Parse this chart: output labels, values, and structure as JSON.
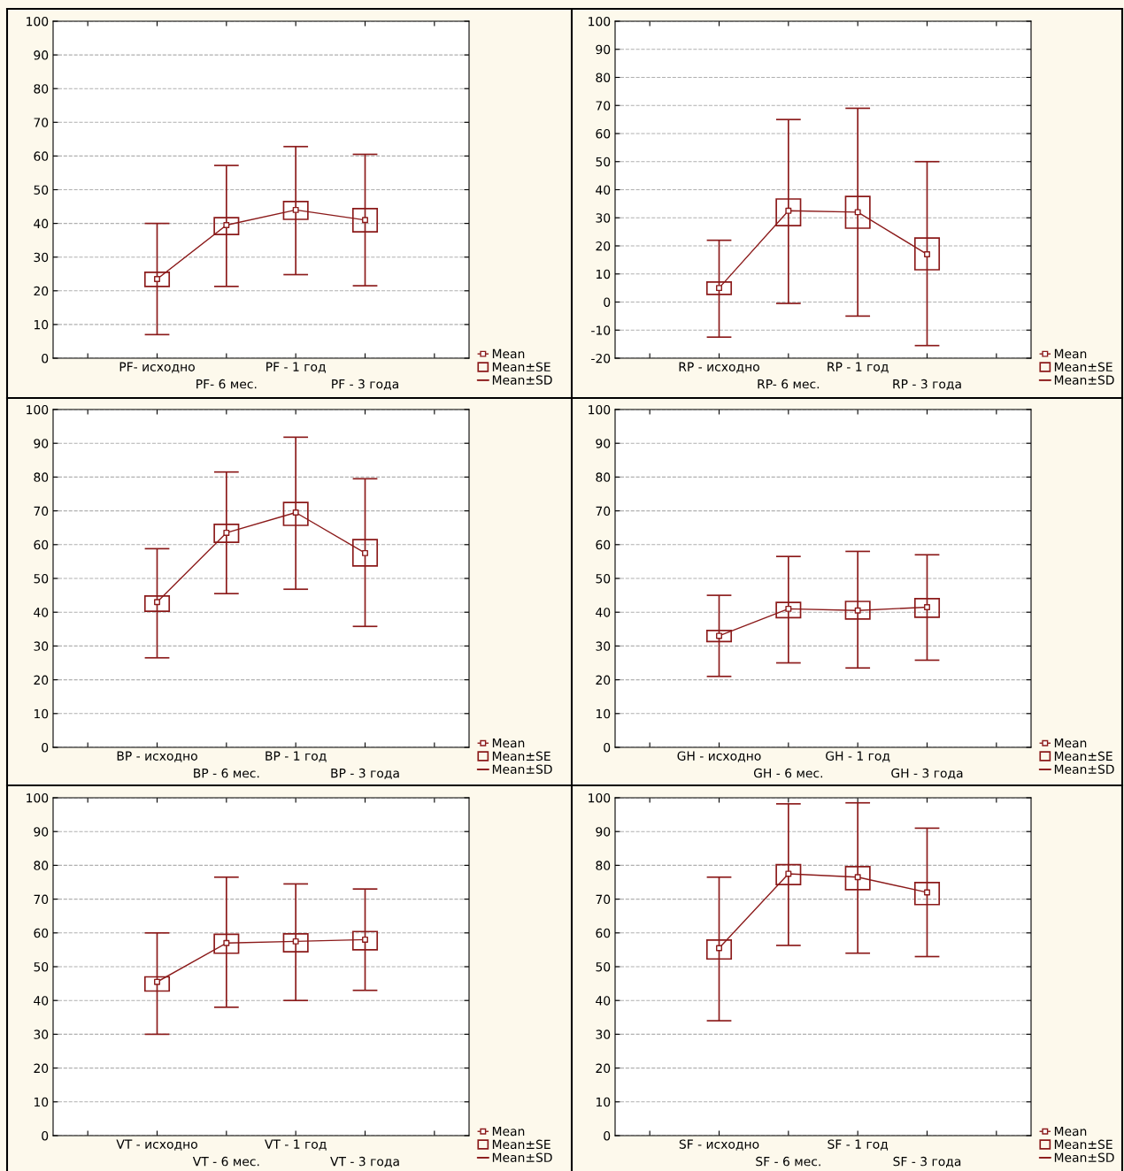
{
  "chart_data": [
    {
      "type": "line",
      "categories": [
        null,
        "PF- исходно",
        "PF- 6 мес.",
        "PF - 1 год",
        "PF - 3 года",
        null
      ],
      "ylim": [
        0,
        100
      ],
      "yticks": [
        0,
        10,
        20,
        30,
        40,
        50,
        60,
        70,
        80,
        90,
        100
      ],
      "grid": "y",
      "legend": "right",
      "series": [
        {
          "name": "Mean",
          "marker": "none",
          "color": "#8b1a1a",
          "values": [
            null,
            23.5,
            39.5,
            44,
            41,
            null
          ]
        },
        {
          "name": "Mean±SE",
          "type": "bar",
          "color": "#8b1a1a",
          "base": [
            null,
            21.3,
            36.7,
            41.2,
            37.5,
            null
          ],
          "values": [
            null,
            4.2,
            5.0,
            5.3,
            6.9,
            null
          ]
        },
        {
          "name": "Mean±SD",
          "type": "scatter",
          "marker": "square",
          "color": "#8b1a1a",
          "values": [
            null,
            23.5,
            39.5,
            44,
            41,
            null
          ],
          "errors": [
            null,
            [
              7,
              40
            ],
            [
              21.3,
              57.2
            ],
            [
              24.8,
              62.8
            ],
            [
              21.5,
              60.5
            ],
            null
          ]
        }
      ]
    },
    {
      "type": "line",
      "categories": [
        null,
        "RP - исходно",
        "RP- 6 мес.",
        "RP - 1 год",
        "RP - 3 года",
        null
      ],
      "ylim": [
        -20,
        100
      ],
      "yticks": [
        -20,
        -10,
        0,
        10,
        20,
        30,
        40,
        50,
        60,
        70,
        80,
        90,
        100
      ],
      "grid": "y",
      "legend": "right",
      "series": [
        {
          "name": "Mean",
          "marker": "none",
          "color": "#8b1a1a",
          "values": [
            null,
            5,
            32.5,
            32,
            17,
            null
          ]
        },
        {
          "name": "Mean±SE",
          "type": "bar",
          "color": "#8b1a1a",
          "base": [
            null,
            2.7,
            27.2,
            26.3,
            11.5,
            null
          ],
          "values": [
            null,
            4.4,
            9.5,
            11.3,
            11.3,
            null
          ]
        },
        {
          "name": "Mean±SD",
          "type": "scatter",
          "marker": "square",
          "color": "#8b1a1a",
          "values": [
            null,
            5,
            32.5,
            32,
            17,
            null
          ],
          "errors": [
            null,
            [
              -12.5,
              22
            ],
            [
              -0.5,
              65
            ],
            [
              -5,
              69
            ],
            [
              -15.5,
              50
            ],
            null
          ]
        }
      ]
    },
    {
      "type": "line",
      "categories": [
        null,
        "BP - исходно",
        "BP - 6 мес.",
        "BP - 1 год",
        "BP - 3 года",
        null
      ],
      "ylim": [
        0,
        100
      ],
      "yticks": [
        0,
        10,
        20,
        30,
        40,
        50,
        60,
        70,
        80,
        90,
        100
      ],
      "grid": "y",
      "legend": "right",
      "series": [
        {
          "name": "Mean",
          "marker": "none",
          "color": "#8b1a1a",
          "values": [
            null,
            43,
            63.5,
            69.5,
            57.5,
            null
          ]
        },
        {
          "name": "Mean±SE",
          "type": "bar",
          "color": "#8b1a1a",
          "base": [
            null,
            40.3,
            60.7,
            65.7,
            53.7,
            null
          ],
          "values": [
            null,
            4.5,
            5.3,
            6.8,
            7.8,
            null
          ]
        },
        {
          "name": "Mean±SD",
          "type": "scatter",
          "marker": "square",
          "color": "#8b1a1a",
          "values": [
            null,
            43,
            63.5,
            69.5,
            57.5,
            null
          ],
          "errors": [
            null,
            [
              26.5,
              58.8
            ],
            [
              45.5,
              81.5
            ],
            [
              46.8,
              91.8
            ],
            [
              35.8,
              79.5
            ],
            null
          ]
        }
      ]
    },
    {
      "type": "line",
      "categories": [
        null,
        "GH - исходно",
        "GH - 6 мес.",
        "GH - 1 год",
        "GH - 3 года",
        null
      ],
      "ylim": [
        0,
        100
      ],
      "yticks": [
        0,
        10,
        20,
        30,
        40,
        50,
        60,
        70,
        80,
        90,
        100
      ],
      "grid": "y",
      "legend": "right",
      "series": [
        {
          "name": "Mean",
          "marker": "none",
          "color": "#8b1a1a",
          "values": [
            null,
            33,
            41,
            40.5,
            41.5,
            null
          ]
        },
        {
          "name": "Mean±SE",
          "type": "bar",
          "color": "#8b1a1a",
          "base": [
            null,
            31.3,
            38.4,
            38,
            38.5,
            null
          ],
          "values": [
            null,
            3.3,
            4.5,
            5.2,
            5.5,
            null
          ]
        },
        {
          "name": "Mean±SD",
          "type": "scatter",
          "marker": "square",
          "color": "#8b1a1a",
          "values": [
            null,
            33,
            41,
            40.5,
            41.5,
            null
          ],
          "errors": [
            null,
            [
              21,
              45
            ],
            [
              25,
              56.5
            ],
            [
              23.5,
              58
            ],
            [
              25.8,
              57
            ],
            null
          ]
        }
      ]
    },
    {
      "type": "line",
      "categories": [
        null,
        "VT - исходно",
        "VT - 6 мес.",
        "VT - 1 год",
        "VT - 3 года",
        null
      ],
      "ylim": [
        0,
        100
      ],
      "yticks": [
        0,
        10,
        20,
        30,
        40,
        50,
        60,
        70,
        80,
        90,
        100
      ],
      "grid": "y",
      "legend": "right",
      "series": [
        {
          "name": "Mean",
          "marker": "none",
          "color": "#8b1a1a",
          "values": [
            null,
            45.5,
            57,
            57.5,
            58,
            null
          ]
        },
        {
          "name": "Mean±SE",
          "type": "bar",
          "color": "#8b1a1a",
          "base": [
            null,
            42.8,
            54,
            54.4,
            55,
            null
          ],
          "values": [
            null,
            4.2,
            5.6,
            5.3,
            5.4,
            null
          ]
        },
        {
          "name": "Mean±SD",
          "type": "scatter",
          "marker": "square",
          "color": "#8b1a1a",
          "values": [
            null,
            45.5,
            57,
            57.5,
            58,
            null
          ],
          "errors": [
            null,
            [
              30,
              60
            ],
            [
              38,
              76.5
            ],
            [
              40,
              74.5
            ],
            [
              43,
              73
            ],
            null
          ]
        }
      ]
    },
    {
      "type": "line",
      "categories": [
        null,
        "SF - исходно",
        "SF - 6 мес.",
        "SF - 1 год",
        "SF - 3 года",
        null
      ],
      "ylim": [
        0,
        100
      ],
      "yticks": [
        0,
        10,
        20,
        30,
        40,
        50,
        60,
        70,
        80,
        90,
        100
      ],
      "grid": "y",
      "legend": "right",
      "series": [
        {
          "name": "Mean",
          "marker": "none",
          "color": "#8b1a1a",
          "values": [
            null,
            55.5,
            77.5,
            76.5,
            72,
            null
          ]
        },
        {
          "name": "Mean±SE",
          "type": "bar",
          "color": "#8b1a1a",
          "base": [
            null,
            52.3,
            74.3,
            72.8,
            68.4,
            null
          ],
          "values": [
            null,
            5.6,
            5.9,
            6.8,
            6.5,
            null
          ]
        },
        {
          "name": "Mean±SD",
          "type": "scatter",
          "marker": "square",
          "color": "#8b1a1a",
          "values": [
            null,
            55.5,
            77.5,
            76.5,
            72,
            null
          ],
          "errors": [
            null,
            [
              34,
              76.5
            ],
            [
              56.3,
              98.2
            ],
            [
              54,
              98.5
            ],
            [
              53,
              91
            ],
            null
          ]
        }
      ]
    }
  ]
}
